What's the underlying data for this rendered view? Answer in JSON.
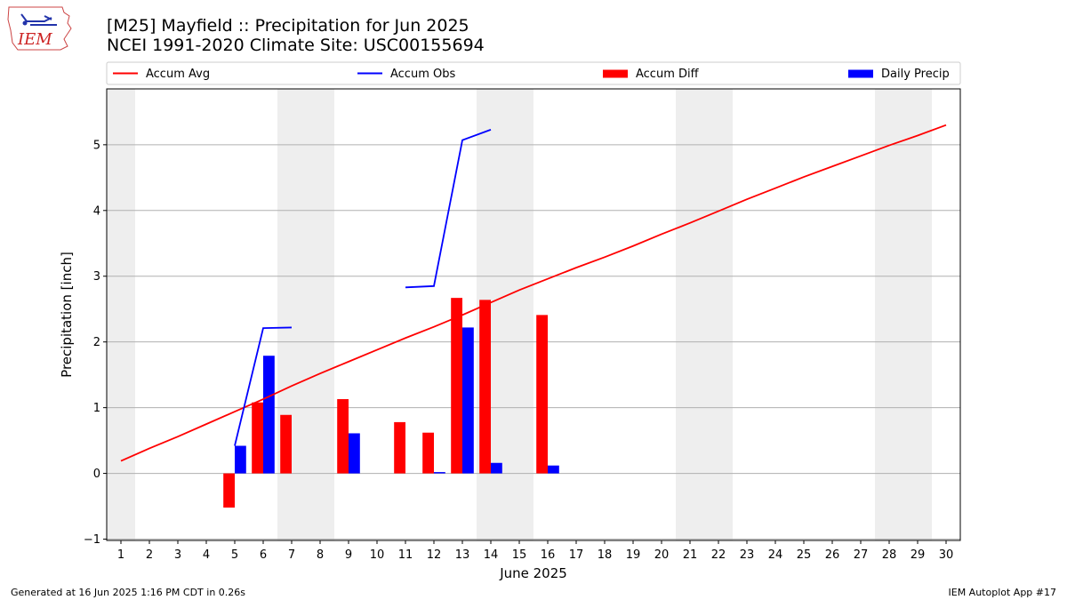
{
  "titles": {
    "line1": "[M25] Mayfield :: Precipitation for Jun 2025",
    "line2": "NCEI 1991-2020 Climate Site: USC00155694"
  },
  "logo": {
    "text": "IEM",
    "color": "#cc2222"
  },
  "footer": {
    "left": "Generated at 16 Jun 2025 1:16 PM CDT in 0.26s",
    "right": "IEM Autoplot App #17"
  },
  "chart_data": {
    "type": "bar",
    "xlabel": "June 2025",
    "ylabel": "Precipitation [inch]",
    "xlim": [
      0.5,
      30.5
    ],
    "ylim": [
      -1.02,
      5.85
    ],
    "yticks": [
      -1,
      0,
      1,
      2,
      3,
      4,
      5
    ],
    "yticklabels": [
      "−1",
      "0",
      "1",
      "2",
      "3",
      "4",
      "5"
    ],
    "xticks": [
      1,
      2,
      3,
      4,
      5,
      6,
      7,
      8,
      9,
      10,
      11,
      12,
      13,
      14,
      15,
      16,
      17,
      18,
      19,
      20,
      21,
      22,
      23,
      24,
      25,
      26,
      27,
      28,
      29,
      30
    ],
    "grid": "horizontal",
    "weekend_shading": [
      [
        0.5,
        1.5
      ],
      [
        6.5,
        8.5
      ],
      [
        13.5,
        15.5
      ],
      [
        20.5,
        22.5
      ],
      [
        27.5,
        29.5
      ]
    ],
    "shading_color": "#eeeeee",
    "legend": {
      "placement": "top",
      "entries": [
        {
          "label": "Accum Avg",
          "kind": "line",
          "color": "#ff0000"
        },
        {
          "label": "Accum Obs",
          "kind": "line",
          "color": "#0000ff"
        },
        {
          "label": "Accum Diff",
          "kind": "bar",
          "color": "#ff0000"
        },
        {
          "label": "Daily Precip",
          "kind": "bar",
          "color": "#0000ff"
        }
      ]
    },
    "series": [
      {
        "name": "Accum Avg",
        "kind": "line",
        "color": "#ff0000",
        "x": [
          1,
          2,
          3,
          4,
          5,
          6,
          7,
          8,
          9,
          10,
          11,
          12,
          13,
          14,
          15,
          16,
          17,
          18,
          19,
          20,
          21,
          22,
          23,
          24,
          25,
          26,
          27,
          28,
          29,
          30
        ],
        "values": [
          0.19,
          0.38,
          0.56,
          0.75,
          0.94,
          1.13,
          1.33,
          1.52,
          1.7,
          1.88,
          2.06,
          2.23,
          2.41,
          2.6,
          2.79,
          2.96,
          3.13,
          3.29,
          3.46,
          3.64,
          3.81,
          3.99,
          4.17,
          4.34,
          4.51,
          4.67,
          4.83,
          4.99,
          5.14,
          5.3
        ]
      },
      {
        "name": "Accum Obs",
        "kind": "line",
        "color": "#0000ff",
        "segments": [
          {
            "x": [
              5,
              6,
              7
            ],
            "values": [
              0.42,
              2.21,
              2.22
            ]
          },
          {
            "x": [
              11,
              12,
              13,
              14
            ],
            "values": [
              2.83,
              2.85,
              5.07,
              5.23
            ]
          }
        ]
      },
      {
        "name": "Accum Diff",
        "kind": "bar",
        "color": "#ff0000",
        "x": [
          5,
          6,
          7,
          9,
          11,
          12,
          13,
          14,
          16
        ],
        "values": [
          -0.52,
          1.08,
          0.89,
          1.13,
          0.78,
          0.62,
          2.67,
          2.64,
          2.41
        ]
      },
      {
        "name": "Daily Precip",
        "kind": "bar",
        "color": "#0000ff",
        "x": [
          5,
          6,
          9,
          12,
          13,
          14,
          16
        ],
        "values": [
          0.42,
          1.79,
          0.61,
          0.02,
          2.22,
          0.16,
          0.12
        ]
      }
    ]
  }
}
